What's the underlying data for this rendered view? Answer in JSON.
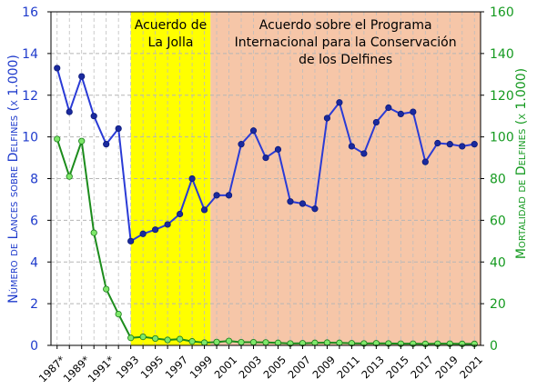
{
  "chart_data": {
    "type": "line",
    "regions": [
      {
        "label_lines": [
          "Acuerdo de",
          "La Jolla"
        ],
        "x_start": 1993,
        "x_end": 1999.5,
        "color": "#ffff00"
      },
      {
        "label_lines": [
          "Acuerdo sobre el Programa",
          "Internacional para la Conservación",
          "de los Delfines"
        ],
        "x_start": 1999.5,
        "x_end": 2021.5,
        "color": "#f6c6a8"
      }
    ],
    "y_left": {
      "label": "Número de Lances sobre Delfines (x 1.000)",
      "ticks": [
        "0",
        "2",
        "4",
        "6",
        "8",
        "10",
        "12",
        "14",
        "16"
      ],
      "ylim": [
        0,
        16
      ],
      "color": "#1f3bcc"
    },
    "y_right": {
      "label": "Mortalidad de Delfines (x 1.000)",
      "ticks": [
        "0",
        "20",
        "40",
        "60",
        "80",
        "100",
        "120",
        "140",
        "160"
      ],
      "ylim": [
        0,
        160
      ],
      "color": "#159a20"
    },
    "x_tick_labels": [
      "1987*",
      "1989*",
      "1991*",
      "1993",
      "1995",
      "1997",
      "1999",
      "2001",
      "2003",
      "2005",
      "2007",
      "2009",
      "2011",
      "2013",
      "2015",
      "2017",
      "2019",
      "2021"
    ],
    "x": [
      1987,
      1988,
      1989,
      1990,
      1991,
      1992,
      1993,
      1994,
      1995,
      1996,
      1997,
      1998,
      1999,
      2000,
      2001,
      2002,
      2003,
      2004,
      2005,
      2006,
      2007,
      2008,
      2009,
      2010,
      2011,
      2012,
      2013,
      2014,
      2015,
      2016,
      2017,
      2018,
      2019,
      2020,
      2021
    ],
    "series": [
      {
        "axis": "left",
        "color": "#2a3bd6",
        "marker": "#1a2a9e",
        "values": [
          13.3,
          11.2,
          12.9,
          11.0,
          9.65,
          10.4,
          5.0,
          5.35,
          5.55,
          5.8,
          6.3,
          8.0,
          6.5,
          7.2,
          7.2,
          9.65,
          10.3,
          9.0,
          9.4,
          6.9,
          6.8,
          6.55,
          10.9,
          11.65,
          9.55,
          9.2,
          10.7,
          11.4,
          11.1,
          11.2,
          8.8,
          9.7,
          9.65,
          9.55,
          9.65
        ]
      },
      {
        "axis": "right",
        "color": "#1c8c1c",
        "marker": "#7ee86a",
        "values": [
          99,
          81,
          98,
          54,
          27,
          15,
          3.6,
          4.1,
          3.3,
          2.6,
          3.0,
          1.9,
          1.3,
          1.6,
          2.1,
          1.5,
          1.5,
          1.4,
          1.2,
          0.9,
          1.0,
          1.2,
          1.3,
          1.2,
          1.0,
          0.9,
          1.0,
          0.9,
          0.8,
          0.8,
          0.7,
          0.8,
          0.8,
          0.7,
          0.7
        ]
      }
    ]
  }
}
